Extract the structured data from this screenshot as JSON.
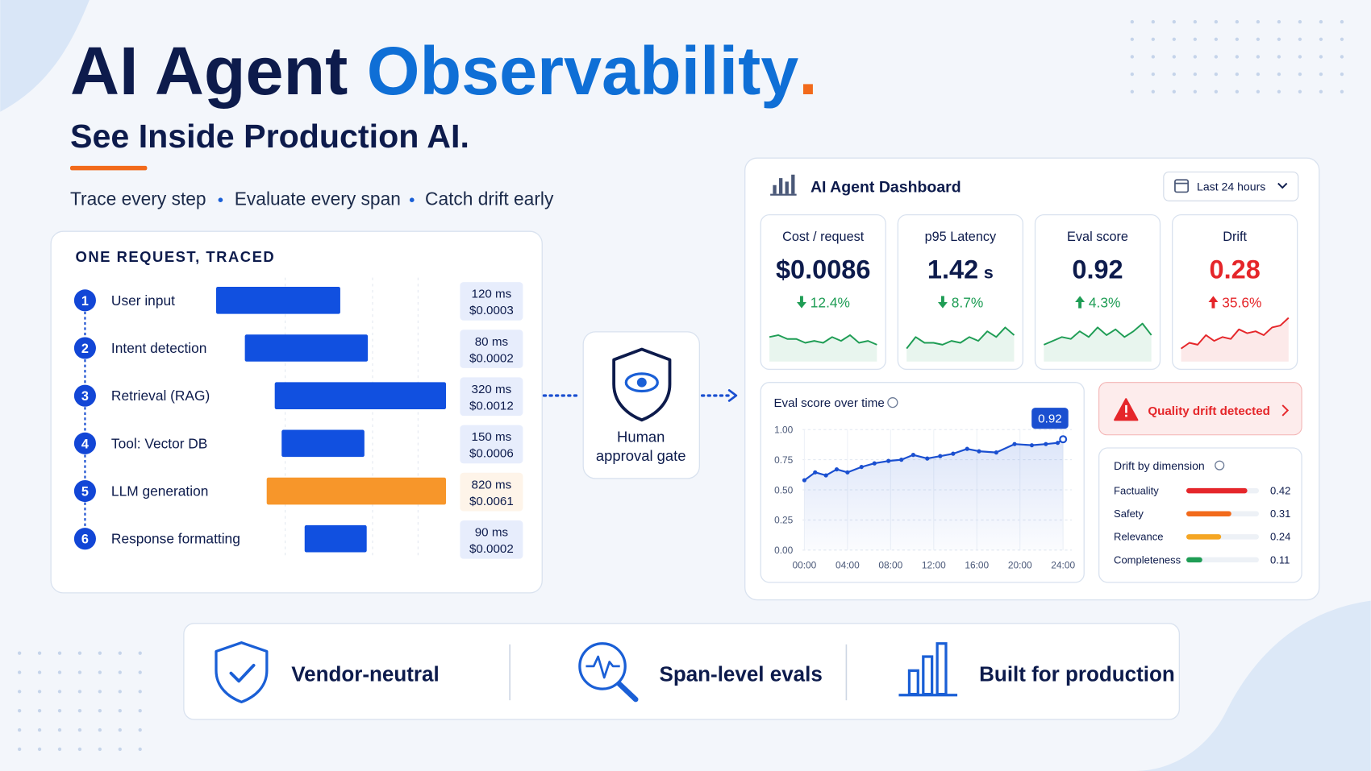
{
  "header": {
    "title": "AI Agent",
    "title_accent": "Observability",
    "title_end": ".",
    "subtitle": "See Inside Production AI.",
    "taglines": [
      "Trace every step",
      "Evaluate every span",
      "Catch drift early"
    ]
  },
  "trace": {
    "title": "ONE REQUEST, TRACED",
    "xlim": [
      0,
      100
    ],
    "steps": [
      {
        "number": 1,
        "label": "User input",
        "start": 0,
        "end": 54,
        "duration": "120 ms",
        "cost": "$0.0003",
        "color": "#1150e0"
      },
      {
        "number": 2,
        "label": "Intent detection",
        "start": 12.5,
        "end": 66,
        "duration": "80 ms",
        "cost": "$0.0002",
        "color": "#1150e0"
      },
      {
        "number": 3,
        "label": "Retrieval (RAG)",
        "start": 25.5,
        "end": 100,
        "duration": "320 ms",
        "cost": "$0.0012",
        "color": "#1150e0"
      },
      {
        "number": 4,
        "label": "Tool: Vector DB",
        "start": 28.5,
        "end": 64.5,
        "duration": "150 ms",
        "cost": "$0.0006",
        "color": "#1150e0"
      },
      {
        "number": 5,
        "label": "LLM generation",
        "start": 22,
        "end": 100,
        "duration": "820 ms",
        "cost": "$0.0061",
        "color": "#f7962a"
      },
      {
        "number": 6,
        "label": "Response formatting",
        "start": 38.5,
        "end": 65.5,
        "duration": "90 ms",
        "cost": "$0.0002",
        "color": "#1150e0"
      }
    ]
  },
  "gate": {
    "label_lines": [
      "Human",
      "approval gate"
    ]
  },
  "dashboard": {
    "title": "AI Agent Dashboard",
    "range": "Last 24 hours",
    "metrics": [
      {
        "label": "Cost / request",
        "value": "$0.0086",
        "change": "12.4%",
        "direction": "down",
        "value_color": "#0d1b4c",
        "trend_color": "#1f9d55",
        "spark_ylim": [
          0,
          10
        ],
        "sparkline": [
          5,
          5.5,
          4.5,
          4.5,
          3.5,
          4,
          3.5,
          5,
          4,
          5.5,
          3.5,
          4,
          3
        ]
      },
      {
        "label": "p95 Latency",
        "value": "1.42",
        "unit": "s",
        "change": "8.7%",
        "direction": "down",
        "value_color": "#0d1b4c",
        "trend_color": "#1f9d55",
        "spark_ylim": [
          0,
          10
        ],
        "sparkline": [
          2,
          5,
          3.5,
          3.5,
          3,
          4,
          3.5,
          5,
          4,
          6.5,
          5,
          7.5,
          5.5
        ]
      },
      {
        "label": "Eval score",
        "value": "0.92",
        "change": "4.3%",
        "direction": "up",
        "value_color": "#0d1b4c",
        "trend_color": "#1f9d55",
        "spark_ylim": [
          0,
          10
        ],
        "sparkline": [
          3,
          4,
          5,
          4.5,
          6.5,
          5,
          7.5,
          5.5,
          7,
          5,
          6.5,
          8.5,
          5.5
        ]
      },
      {
        "label": "Drift",
        "value": "0.28",
        "change": "35.6%",
        "direction": "up",
        "value_color": "#e5262a",
        "trend_color": "#e5262a",
        "spark_ylim": [
          0,
          10
        ],
        "sparkline": [
          2,
          3.5,
          3,
          5.5,
          4,
          5,
          4.5,
          7,
          6,
          6.5,
          5.5,
          7.5,
          8,
          10
        ]
      }
    ],
    "eval_chart": {
      "type": "line",
      "title": "Eval score over time",
      "color": "#1a4fd0",
      "xlim": [
        0,
        24
      ],
      "ylim": [
        0,
        1
      ],
      "xticks": [
        {
          "value": 0,
          "label": "00:00"
        },
        {
          "value": 4,
          "label": "04:00"
        },
        {
          "value": 8,
          "label": "08:00"
        },
        {
          "value": 12,
          "label": "12:00"
        },
        {
          "value": 16,
          "label": "16:00"
        },
        {
          "value": 20,
          "label": "20:00"
        },
        {
          "value": 24,
          "label": "24:00"
        }
      ],
      "yticks": [
        {
          "value": 0,
          "label": "0.00"
        },
        0.25,
        {
          "value": 0.5,
          "label": "0.50"
        },
        0.75,
        {
          "value": 1,
          "label": "1.00"
        }
      ],
      "grid": true,
      "x": [
        0,
        1,
        2,
        3,
        4,
        5.3,
        6.5,
        7.8,
        9,
        10.1,
        11.4,
        12.6,
        13.8,
        15.1,
        16.2,
        17.8,
        19.5,
        21.1,
        22.4,
        23.5,
        24
      ],
      "values": [
        0.58,
        0.645,
        0.62,
        0.67,
        0.645,
        0.69,
        0.72,
        0.74,
        0.75,
        0.79,
        0.76,
        0.78,
        0.8,
        0.84,
        0.82,
        0.81,
        0.88,
        0.87,
        0.88,
        0.89,
        0.92
      ],
      "callout": "0.92"
    },
    "alert": "Quality drift detected",
    "drift": {
      "title": "Drift by dimension",
      "xlim": [
        0,
        0.5
      ],
      "items": [
        {
          "label": "Factuality",
          "value": 0.42,
          "color": "#e5262a"
        },
        {
          "label": "Safety",
          "value": 0.31,
          "color": "#f26a1b"
        },
        {
          "label": "Relevance",
          "value": 0.24,
          "color": "#f5a623"
        },
        {
          "label": "Completeness",
          "value": 0.11,
          "color": "#1f9d55"
        }
      ]
    }
  },
  "features": [
    "Vendor-neutral",
    "Span-level evals",
    "Built for production"
  ]
}
